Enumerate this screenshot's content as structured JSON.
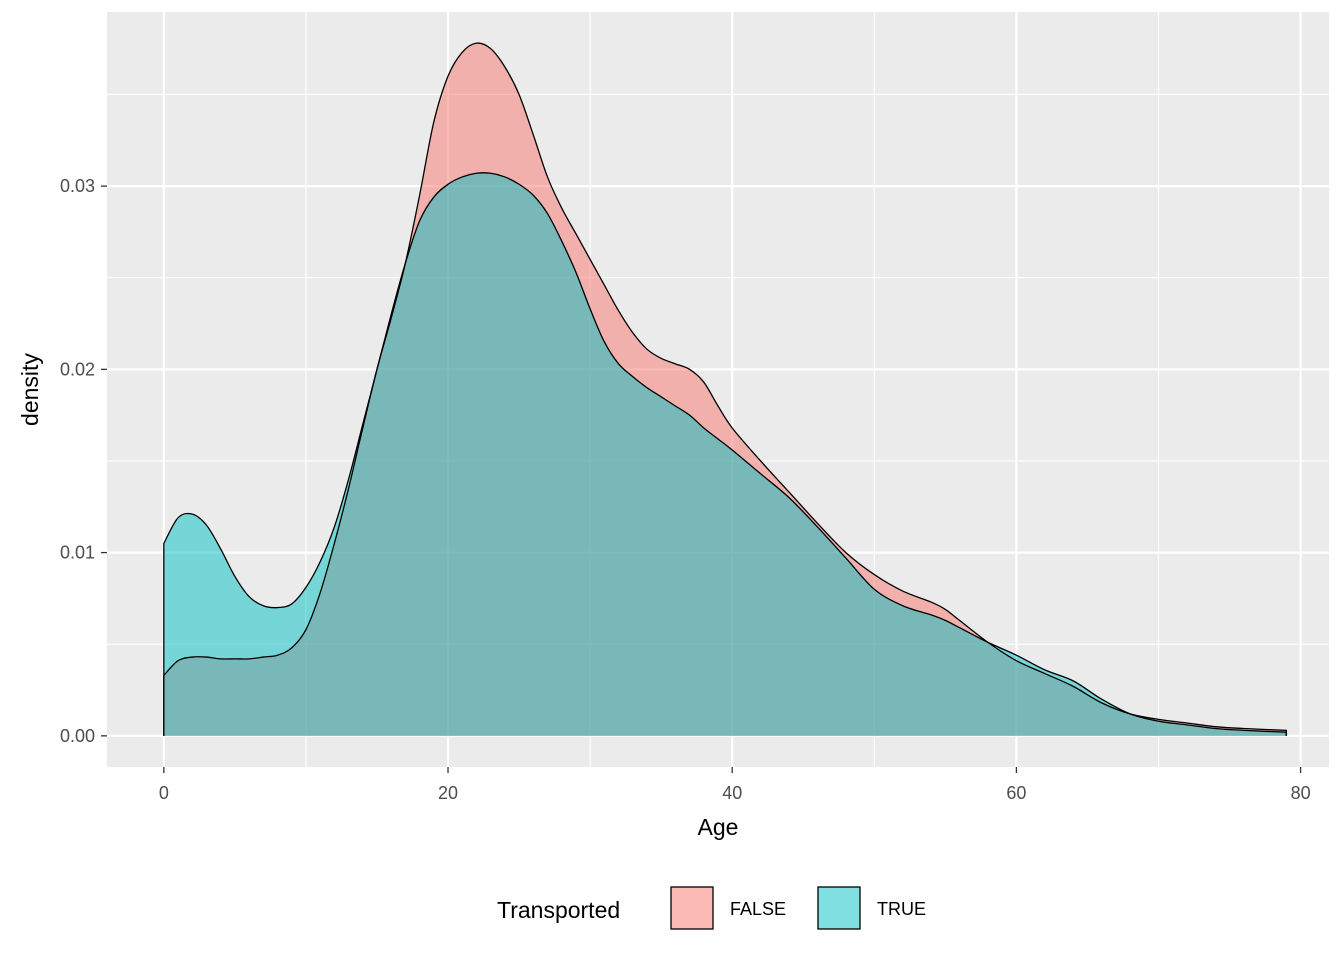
{
  "chart_data": {
    "type": "area",
    "title": "",
    "xlabel": "Age",
    "ylabel": "density",
    "xlim": [
      -4,
      82
    ],
    "ylim": [
      -0.0017,
      0.0395
    ],
    "x_ticks": [
      {
        "value": 0,
        "label": "0"
      },
      {
        "value": 20,
        "label": "20"
      },
      {
        "value": 40,
        "label": "40"
      },
      {
        "value": 60,
        "label": "60"
      },
      {
        "value": 80,
        "label": "80"
      }
    ],
    "y_ticks": [
      {
        "value": 0,
        "label": "0.00"
      },
      {
        "value": 0.01,
        "label": "0.01"
      },
      {
        "value": 0.02,
        "label": "0.02"
      },
      {
        "value": 0.03,
        "label": "0.03"
      }
    ],
    "grid": true,
    "legend": {
      "title": "Transported",
      "position": "bottom"
    },
    "colors": {
      "FALSE": "#F8766D",
      "TRUE": "#00BFC4",
      "panel": "#EBEBEB",
      "grid": "#FFFFFF"
    },
    "fill_alpha": 0.5,
    "series": [
      {
        "name": "FALSE",
        "x": [
          0,
          1,
          2,
          3,
          4,
          5,
          6,
          7,
          8,
          9,
          10,
          11,
          12,
          13,
          14,
          15,
          16,
          17,
          18,
          19,
          20,
          21,
          22,
          23,
          24,
          25,
          26,
          27,
          28,
          29,
          30,
          31,
          32,
          33,
          34,
          35,
          36,
          37,
          38,
          39,
          40,
          42,
          44,
          46,
          48,
          50,
          52,
          54,
          55,
          56,
          58,
          60,
          62,
          64,
          66,
          68,
          70,
          72,
          74,
          76,
          79
        ],
        "y": [
          0.0033,
          0.0041,
          0.0043,
          0.0043,
          0.0042,
          0.0042,
          0.0042,
          0.0043,
          0.0044,
          0.0048,
          0.0058,
          0.0078,
          0.0105,
          0.0135,
          0.0168,
          0.02,
          0.0228,
          0.0258,
          0.0295,
          0.0335,
          0.036,
          0.0373,
          0.0378,
          0.0375,
          0.0365,
          0.035,
          0.0328,
          0.0305,
          0.0288,
          0.0274,
          0.026,
          0.0246,
          0.0232,
          0.022,
          0.0211,
          0.0206,
          0.0203,
          0.02,
          0.0193,
          0.018,
          0.0168,
          0.015,
          0.0133,
          0.0116,
          0.01,
          0.0088,
          0.0079,
          0.0073,
          0.0069,
          0.0063,
          0.0051,
          0.0041,
          0.0034,
          0.0027,
          0.0018,
          0.0012,
          0.0009,
          0.0007,
          0.0005,
          0.0004,
          0.0003
        ]
      },
      {
        "name": "TRUE",
        "x": [
          0,
          1,
          2,
          3,
          4,
          5,
          6,
          7,
          8,
          9,
          10,
          11,
          12,
          13,
          14,
          15,
          16,
          17,
          18,
          19,
          20,
          21,
          22,
          23,
          24,
          25,
          26,
          27,
          28,
          29,
          30,
          31,
          32,
          33,
          34,
          35,
          36,
          37,
          38,
          39,
          40,
          42,
          44,
          46,
          48,
          50,
          52,
          54,
          55,
          56,
          58,
          60,
          62,
          64,
          66,
          68,
          70,
          72,
          74,
          76,
          79
        ],
        "y": [
          0.0105,
          0.0119,
          0.0121,
          0.0115,
          0.0102,
          0.0087,
          0.0076,
          0.0071,
          0.007,
          0.0072,
          0.0081,
          0.0095,
          0.0114,
          0.014,
          0.017,
          0.02,
          0.023,
          0.0258,
          0.0281,
          0.0294,
          0.0301,
          0.0305,
          0.0307,
          0.0307,
          0.0305,
          0.0301,
          0.0295,
          0.0285,
          0.027,
          0.0253,
          0.0233,
          0.0215,
          0.0203,
          0.0196,
          0.019,
          0.0185,
          0.018,
          0.0175,
          0.0168,
          0.0162,
          0.0156,
          0.0143,
          0.013,
          0.0114,
          0.0097,
          0.008,
          0.0071,
          0.0066,
          0.0063,
          0.0059,
          0.0051,
          0.0044,
          0.0036,
          0.003,
          0.002,
          0.0012,
          0.0008,
          0.0006,
          0.0004,
          0.0003,
          0.0002
        ]
      }
    ]
  }
}
